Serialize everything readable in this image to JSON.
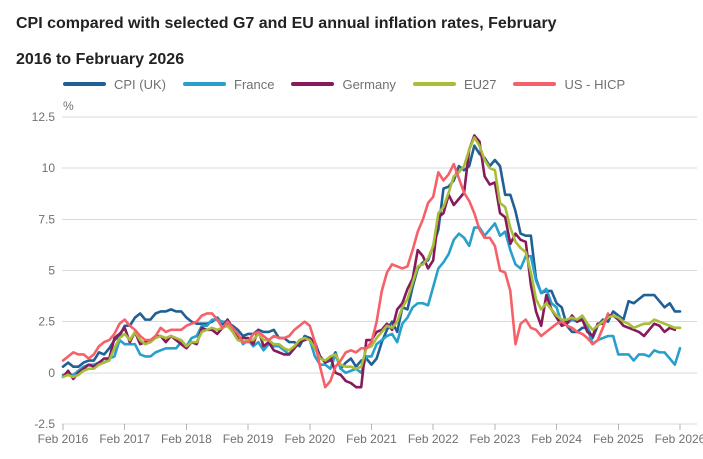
{
  "title": {
    "line1": "CPI compared with selected G7 and EU annual inflation rates, February",
    "line2": "2016 to February 2026"
  },
  "chart_data": {
    "type": "line",
    "title": "CPI compared with selected G7 and EU annual inflation rates, February 2016 to February 2026",
    "unit": "%",
    "grid": "horizontal",
    "legend_position": "top",
    "x_axis": {
      "start": "Feb 2016",
      "end": "Feb 2026",
      "frequency": "monthly",
      "points_per_series": 121,
      "tick_labels": [
        "Feb 2016",
        "Feb 2017",
        "Feb 2018",
        "Feb 2019",
        "Feb 2020",
        "Feb 2021",
        "Feb 2022",
        "Feb 2023",
        "Feb 2024",
        "Feb 2025",
        "Feb 2026"
      ]
    },
    "y_axis": {
      "unit_label": "%",
      "min": -2.5,
      "max": 12.5,
      "ticks": [
        12.5,
        10,
        7.5,
        5,
        2.5,
        0,
        -2.5
      ],
      "tick_labels": [
        "12.5",
        "10",
        "7.5",
        "5",
        "2.5",
        "0",
        "-2.5"
      ]
    },
    "series": [
      {
        "name": "CPI (UK)",
        "color": "#206095",
        "values": [
          0.3,
          0.5,
          0.3,
          0.3,
          0.5,
          0.6,
          0.6,
          1.0,
          0.9,
          1.2,
          1.6,
          1.8,
          2.3,
          2.3,
          2.7,
          2.9,
          2.6,
          2.6,
          2.9,
          3.0,
          3.0,
          3.1,
          3.0,
          3.0,
          2.7,
          2.5,
          2.4,
          2.4,
          2.4,
          2.5,
          2.7,
          2.4,
          2.4,
          2.3,
          2.1,
          1.8,
          1.9,
          1.9,
          2.1,
          2.0,
          2.0,
          2.1,
          1.7,
          1.7,
          1.5,
          1.5,
          1.3,
          1.8,
          1.7,
          1.5,
          0.8,
          0.5,
          0.6,
          1.0,
          0.2,
          0.5,
          0.7,
          0.3,
          0.6,
          0.7,
          0.4,
          0.7,
          1.5,
          2.1,
          2.5,
          2.0,
          3.2,
          3.1,
          4.2,
          5.1,
          5.4,
          5.5,
          6.2,
          7.0,
          9.0,
          9.1,
          9.4,
          10.1,
          9.9,
          10.1,
          11.1,
          10.7,
          10.5,
          10.1,
          10.4,
          10.1,
          8.7,
          8.7,
          7.9,
          6.8,
          6.7,
          6.7,
          4.6,
          3.9,
          4.0,
          4.0,
          3.4,
          3.2,
          2.3,
          2.0,
          2.0,
          2.2,
          2.2,
          1.7,
          2.3,
          2.6,
          2.5,
          3.0,
          2.8,
          2.6,
          3.5,
          3.4,
          3.6,
          3.8,
          3.8,
          3.8,
          3.5,
          3.2,
          3.4,
          3.0,
          3.0
        ]
      },
      {
        "name": "France",
        "color": "#27a0cc",
        "values": [
          -0.1,
          -0.1,
          -0.1,
          0.1,
          0.3,
          0.4,
          0.4,
          0.5,
          0.5,
          0.7,
          0.8,
          1.6,
          1.4,
          1.4,
          1.4,
          0.9,
          0.8,
          0.8,
          1.0,
          1.1,
          1.2,
          1.2,
          1.2,
          1.5,
          1.3,
          1.7,
          1.8,
          2.3,
          2.3,
          2.6,
          2.6,
          2.5,
          2.5,
          2.2,
          1.9,
          1.4,
          1.6,
          1.3,
          1.5,
          1.1,
          1.4,
          1.3,
          1.3,
          1.1,
          0.9,
          1.2,
          1.6,
          1.7,
          1.6,
          0.8,
          0.4,
          0.4,
          0.2,
          0.9,
          0.2,
          0.0,
          0.1,
          0.2,
          0.0,
          0.8,
          0.8,
          1.4,
          1.6,
          1.8,
          1.9,
          1.5,
          2.4,
          2.7,
          3.2,
          3.4,
          3.4,
          3.3,
          4.2,
          5.1,
          5.4,
          5.8,
          6.5,
          6.8,
          6.6,
          6.2,
          7.1,
          7.1,
          6.7,
          7.0,
          7.3,
          6.7,
          6.9,
          6.0,
          5.3,
          5.1,
          5.7,
          5.7,
          4.5,
          3.9,
          4.1,
          3.4,
          3.2,
          2.4,
          2.4,
          2.6,
          2.5,
          2.7,
          2.2,
          1.4,
          1.6,
          1.7,
          1.8,
          1.8,
          0.9,
          0.9,
          0.9,
          0.6,
          0.9,
          0.9,
          0.8,
          1.1,
          1.0,
          1.0,
          0.7,
          0.4,
          1.2
        ]
      },
      {
        "name": "Germany",
        "color": "#871a5b",
        "values": [
          -0.2,
          0.1,
          -0.3,
          0.0,
          0.2,
          0.4,
          0.3,
          0.5,
          0.7,
          0.7,
          1.7,
          1.9,
          2.2,
          1.5,
          2.0,
          1.4,
          1.5,
          1.5,
          1.8,
          1.8,
          1.5,
          1.8,
          1.6,
          1.4,
          1.2,
          1.5,
          1.4,
          2.2,
          2.1,
          2.1,
          1.9,
          2.2,
          2.6,
          2.2,
          1.7,
          1.7,
          1.7,
          1.4,
          2.1,
          1.3,
          1.5,
          1.1,
          1.0,
          0.9,
          0.9,
          1.2,
          1.5,
          1.6,
          1.7,
          1.3,
          0.8,
          0.5,
          0.8,
          0.0,
          -0.1,
          -0.4,
          -0.5,
          -0.7,
          -0.7,
          1.6,
          1.6,
          2.0,
          2.1,
          2.4,
          2.1,
          3.1,
          3.4,
          4.1,
          4.6,
          6.0,
          5.7,
          5.1,
          5.5,
          7.6,
          7.8,
          8.7,
          8.2,
          8.5,
          8.8,
          10.9,
          11.6,
          11.3,
          9.6,
          9.2,
          9.3,
          7.8,
          7.6,
          6.3,
          6.8,
          6.5,
          6.4,
          4.3,
          3.0,
          2.3,
          3.8,
          3.1,
          2.7,
          2.3,
          2.4,
          2.8,
          2.5,
          2.6,
          2.0,
          1.8,
          2.4,
          2.4,
          2.8,
          2.8,
          2.6,
          2.3,
          2.2,
          2.1,
          2.0,
          1.8,
          2.1,
          2.4,
          2.3,
          2.0,
          2.2,
          2.1
        ]
      },
      {
        "name": "EU27",
        "color": "#a8bd3a",
        "values": [
          -0.2,
          -0.1,
          -0.2,
          -0.1,
          0.1,
          0.2,
          0.2,
          0.4,
          0.5,
          0.6,
          1.2,
          1.7,
          1.9,
          1.6,
          2.0,
          1.6,
          1.4,
          1.5,
          1.7,
          1.8,
          1.7,
          1.8,
          1.7,
          1.6,
          1.3,
          1.5,
          1.5,
          2.0,
          2.1,
          2.2,
          2.1,
          2.2,
          2.3,
          2.0,
          1.6,
          1.5,
          1.6,
          1.6,
          1.9,
          1.6,
          1.6,
          1.4,
          1.4,
          1.2,
          1.1,
          1.3,
          1.6,
          1.7,
          1.6,
          1.2,
          0.7,
          0.6,
          0.8,
          0.9,
          0.4,
          0.3,
          0.3,
          0.2,
          0.3,
          1.2,
          1.3,
          1.7,
          2.0,
          2.3,
          2.2,
          2.5,
          3.2,
          3.6,
          4.4,
          5.2,
          5.3,
          5.6,
          6.2,
          7.8,
          8.1,
          8.8,
          9.6,
          9.8,
          10.1,
          10.9,
          11.5,
          11.1,
          10.4,
          10.0,
          9.9,
          8.3,
          8.1,
          7.1,
          6.4,
          6.1,
          5.9,
          4.9,
          3.6,
          3.1,
          3.4,
          3.1,
          2.8,
          2.6,
          2.6,
          2.7,
          2.6,
          2.8,
          2.4,
          2.1,
          2.3,
          2.5,
          2.7,
          2.8,
          2.7,
          2.5,
          2.4,
          2.2,
          2.3,
          2.4,
          2.4,
          2.6,
          2.5,
          2.4,
          2.3,
          2.2,
          2.2
        ]
      },
      {
        "name": "US - HICP",
        "color": "#f66068",
        "values": [
          0.6,
          0.8,
          1.0,
          0.9,
          0.9,
          0.7,
          0.9,
          1.3,
          1.5,
          1.6,
          1.9,
          2.4,
          2.6,
          2.3,
          2.1,
          1.8,
          1.6,
          1.6,
          1.8,
          2.2,
          2.0,
          2.1,
          2.1,
          2.1,
          2.3,
          2.4,
          2.5,
          2.8,
          2.9,
          2.9,
          2.6,
          2.2,
          2.5,
          2.2,
          1.9,
          1.5,
          1.5,
          1.9,
          2.0,
          1.8,
          1.6,
          1.8,
          1.7,
          1.7,
          1.8,
          2.1,
          2.3,
          2.5,
          2.3,
          1.5,
          0.3,
          -0.7,
          -0.4,
          0.3,
          0.6,
          1.0,
          1.1,
          1.0,
          1.2,
          1.2,
          1.5,
          2.5,
          4.0,
          4.9,
          5.3,
          5.2,
          5.1,
          5.2,
          6.0,
          6.9,
          7.5,
          8.3,
          8.6,
          9.8,
          9.4,
          9.7,
          10.2,
          9.5,
          8.8,
          8.4,
          7.8,
          7.0,
          6.6,
          6.6,
          6.2,
          5.0,
          4.9,
          4.0,
          1.4,
          2.4,
          2.6,
          2.2,
          2.1,
          1.8,
          2.0,
          2.2,
          2.4,
          2.5,
          2.3,
          2.2,
          2.0,
          1.9,
          1.7,
          1.4,
          1.6,
          2.2,
          2.9,
          null,
          null,
          null,
          null,
          null,
          null,
          null,
          null,
          null,
          null,
          null,
          null,
          null,
          null
        ]
      }
    ]
  }
}
